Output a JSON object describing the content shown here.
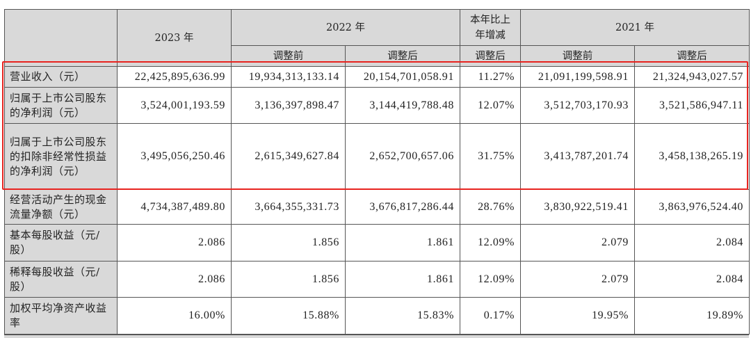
{
  "header": {
    "col_2023": "2023 年",
    "col_2022": "2022 年",
    "col_change": "本年比上年增减",
    "col_2021": "2021 年",
    "sub_before": "调整前",
    "sub_after": "调整后"
  },
  "highlight_color": "#e8231f",
  "rows": [
    {
      "label": "营业收入（元）",
      "v2023": "22,425,895,636.99",
      "v2022_before": "19,934,313,133.14",
      "v2022_after": "20,154,701,058.91",
      "change": "11.27%",
      "v2021_before": "21,091,199,598.91",
      "v2021_after": "21,324,943,027.57"
    },
    {
      "label": "归属于上市公司股东的净利润（元）",
      "v2023": "3,524,001,193.59",
      "v2022_before": "3,136,397,898.47",
      "v2022_after": "3,144,419,788.48",
      "change": "12.07%",
      "v2021_before": "3,512,703,170.93",
      "v2021_after": "3,521,586,947.11"
    },
    {
      "label": "归属于上市公司股东的扣除非经常性损益的净利润（元）",
      "v2023": "3,495,056,250.46",
      "v2022_before": "2,615,349,627.84",
      "v2022_after": "2,652,700,657.06",
      "change": "31.75%",
      "v2021_before": "3,413,787,201.74",
      "v2021_after": "3,458,138,265.19"
    },
    {
      "label": "经营活动产生的现金流量净额（元）",
      "v2023": "4,734,387,489.80",
      "v2022_before": "3,664,355,331.73",
      "v2022_after": "3,676,817,286.44",
      "change": "28.76%",
      "v2021_before": "3,830,922,519.41",
      "v2021_after": "3,863,976,524.40"
    },
    {
      "label": "基本每股收益（元/股）",
      "v2023": "2.086",
      "v2022_before": "1.856",
      "v2022_after": "1.861",
      "change": "12.09%",
      "v2021_before": "2.079",
      "v2021_after": "2.084"
    },
    {
      "label": "稀释每股收益（元/股）",
      "v2023": "2.086",
      "v2022_before": "1.856",
      "v2022_after": "1.861",
      "change": "12.09%",
      "v2021_before": "2.079",
      "v2021_after": "2.084"
    },
    {
      "label": "加权平均净资产收益率",
      "v2023": "16.00%",
      "v2022_before": "15.88%",
      "v2022_after": "15.83%",
      "change": "0.17%",
      "v2021_before": "19.95%",
      "v2021_after": "19.89%"
    }
  ]
}
